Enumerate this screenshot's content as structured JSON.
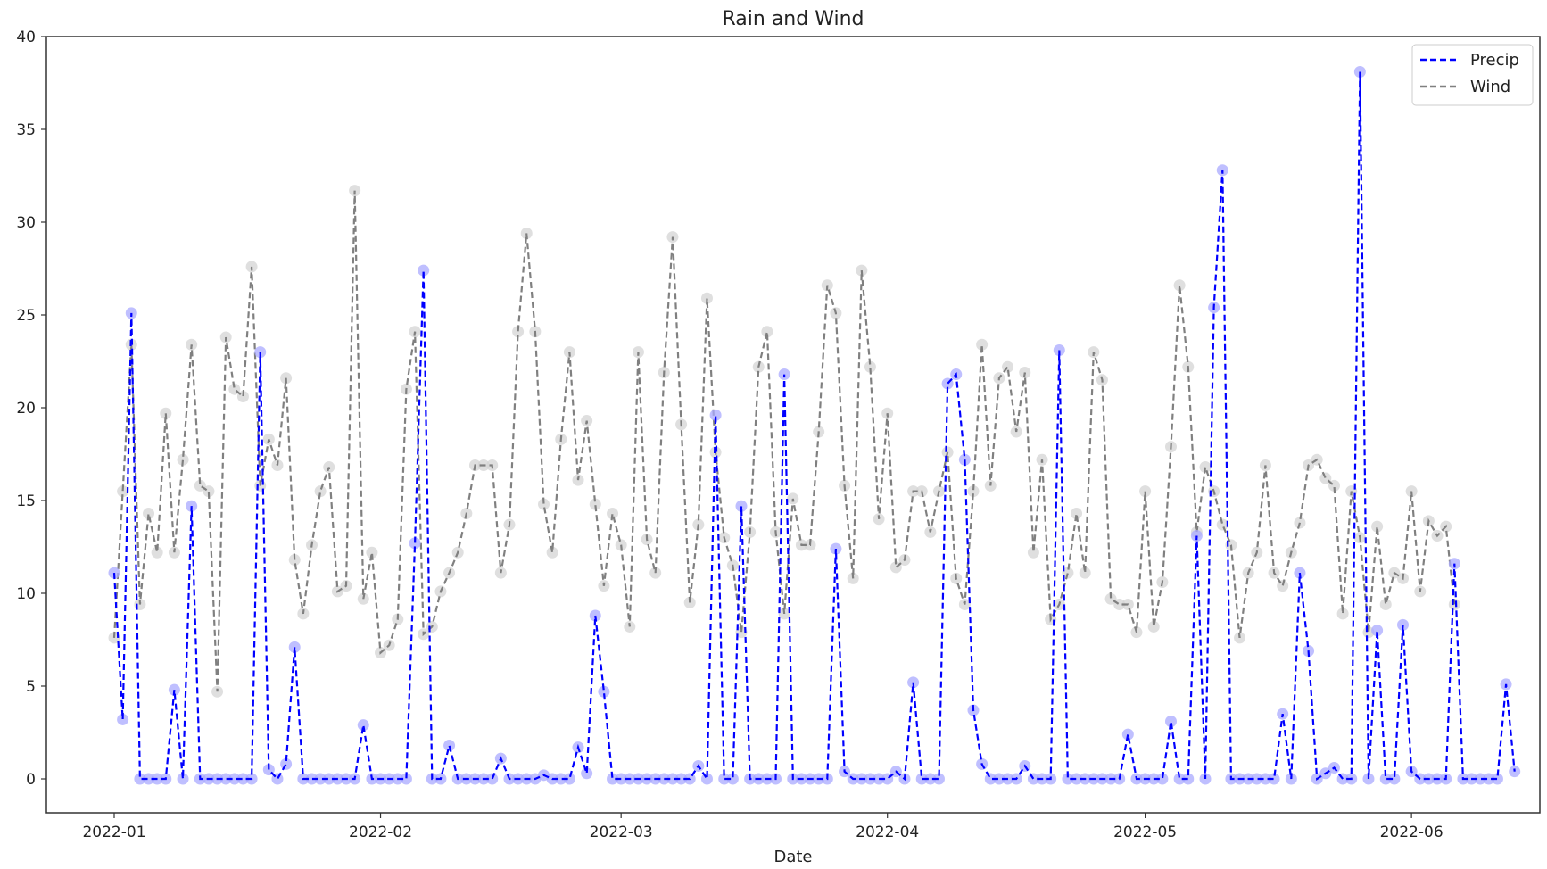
{
  "chart_data": {
    "type": "line",
    "title": "Rain and Wind",
    "xlabel": "Date",
    "ylabel": "",
    "ylim": [
      -2,
      40
    ],
    "yticks": [
      0,
      5,
      10,
      15,
      20,
      25,
      30,
      35,
      40
    ],
    "xticks": [
      {
        "label": "2022-01",
        "day": 0
      },
      {
        "label": "2022-02",
        "day": 31
      },
      {
        "label": "2022-03",
        "day": 59
      },
      {
        "label": "2022-04",
        "day": 90
      },
      {
        "label": "2022-05",
        "day": 120
      },
      {
        "label": "2022-06",
        "day": 151
      }
    ],
    "x_start": "2022-01-01",
    "x_end": "2022-06-08",
    "grid": false,
    "legend_position": "upper right",
    "series": [
      {
        "name": "Precip",
        "color": "#0000ff",
        "linestyle": "dashed",
        "marker": "circle",
        "values": [
          11.1,
          3.2,
          25.1,
          0,
          0,
          0,
          0,
          4.8,
          0,
          14.7,
          0,
          0,
          0,
          0,
          0,
          0,
          0,
          23,
          0.5,
          0,
          0.8,
          7.1,
          0,
          0,
          0,
          0,
          0,
          0,
          0,
          2.9,
          0,
          0,
          0,
          0,
          0,
          12.7,
          27.4,
          0,
          0,
          1.8,
          0,
          0,
          0,
          0,
          0,
          1.1,
          0,
          0,
          0,
          0,
          0.2,
          0,
          0,
          0,
          1.7,
          0.3,
          8.8,
          4.7,
          0,
          0,
          0,
          0,
          0,
          0,
          0,
          0,
          0,
          0,
          0.7,
          0,
          19.6,
          0,
          0,
          14.7,
          0,
          0,
          0,
          0,
          21.8,
          0,
          0,
          0,
          0,
          0,
          12.4,
          0.4,
          0,
          0,
          0,
          0,
          0,
          0.4,
          0,
          5.2,
          0,
          0,
          0,
          21.3,
          21.8,
          17.2,
          3.7,
          0.8,
          0,
          0,
          0,
          0,
          0.7,
          0,
          0,
          0,
          23.1,
          0,
          0,
          0,
          0,
          0,
          0,
          0,
          2.4,
          0,
          0,
          0,
          0,
          3.1,
          0,
          0,
          13.1,
          0,
          25.4,
          32.8,
          0,
          0,
          0,
          0,
          0,
          0,
          3.5,
          0,
          11.1,
          6.9,
          0,
          0.3,
          0.6,
          0,
          0,
          38.1,
          0,
          8,
          0,
          0,
          8.3,
          0.4,
          0,
          0,
          0,
          0,
          11.6,
          0,
          0,
          0,
          0,
          0,
          5.1,
          0.4
        ]
      },
      {
        "name": "Wind",
        "color": "#808080",
        "linestyle": "dashed",
        "marker": "circle",
        "values": [
          7.6,
          15.5,
          23.4,
          9.4,
          14.3,
          12.2,
          19.7,
          12.2,
          17.2,
          23.4,
          15.8,
          15.5,
          4.7,
          23.8,
          21,
          20.6,
          27.6,
          15.8,
          18.3,
          16.9,
          21.6,
          11.8,
          8.9,
          12.6,
          15.5,
          16.8,
          10.1,
          10.4,
          31.7,
          9.7,
          12.2,
          6.8,
          7.2,
          8.6,
          21,
          24.1,
          7.8,
          8.2,
          10.1,
          11.1,
          12.2,
          14.3,
          16.9,
          16.9,
          16.9,
          11.1,
          13.7,
          24.1,
          29.4,
          24.1,
          14.8,
          12.2,
          18.3,
          23,
          16.1,
          19.3,
          14.8,
          10.4,
          14.3,
          12.6,
          8.2,
          23,
          12.9,
          11.1,
          21.9,
          29.2,
          19.1,
          9.5,
          13.7,
          25.9,
          17.6,
          13,
          11.5,
          7.9,
          13.3,
          22.2,
          24.1,
          13.3,
          8.9,
          15.1,
          12.6,
          12.6,
          18.7,
          26.6,
          25.1,
          15.8,
          10.8,
          27.4,
          22.2,
          14,
          19.7,
          11.4,
          11.8,
          15.5,
          15.5,
          13.3,
          15.5,
          17.6,
          10.8,
          9.4,
          15.5,
          23.4,
          15.8,
          21.6,
          22.2,
          18.7,
          21.9,
          12.2,
          17.2,
          8.6,
          9.4,
          11.1,
          14.3,
          11.1,
          23,
          21.5,
          9.7,
          9.4,
          9.4,
          7.9,
          15.5,
          8.2,
          10.6,
          17.9,
          26.6,
          22.2,
          13.3,
          16.8,
          15.5,
          13.7,
          12.6,
          7.6,
          11.1,
          12.2,
          16.9,
          11.1,
          10.4,
          12.2,
          13.8,
          16.9,
          17.2,
          16.2,
          15.8,
          8.9,
          15.5,
          13,
          7.9,
          13.6,
          9.4,
          11.1,
          10.8,
          15.5,
          10.1,
          13.9,
          13.1,
          13.6,
          9.4
        ]
      }
    ]
  },
  "legend": {
    "items": [
      {
        "label": "Precip",
        "color": "#0000ff"
      },
      {
        "label": "Wind",
        "color": "#808080"
      }
    ]
  }
}
